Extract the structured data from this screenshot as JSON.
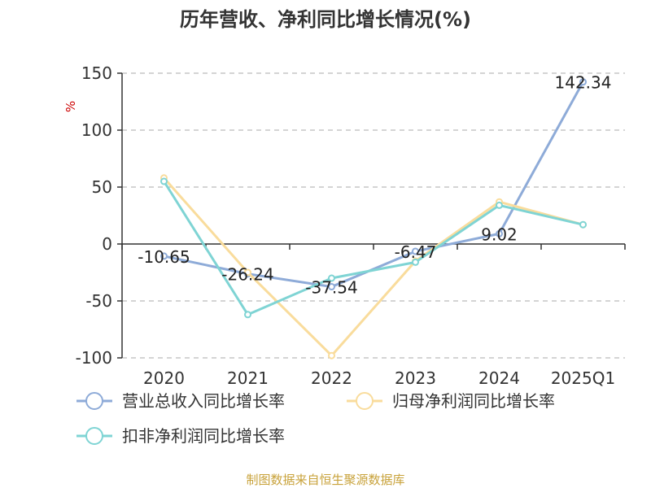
{
  "chart_data": {
    "type": "line",
    "title": "历年营收、净利同比增长情况(%)",
    "ylabel": "%",
    "categories": [
      "2020",
      "2021",
      "2022",
      "2023",
      "2024",
      "2025Q1"
    ],
    "ylim": [
      -100,
      150
    ],
    "yticks": [
      150,
      100,
      50,
      0,
      -50,
      -100
    ],
    "grid": true,
    "legend_position": "bottom",
    "series": [
      {
        "name": "营业总收入同比增长率",
        "color": "#8eabd8",
        "values": [
          -10.65,
          -26.24,
          -37.54,
          -6.47,
          9.02,
          142.34
        ],
        "labels": [
          "-10.65",
          "-26.24",
          "-37.54",
          "-6.47",
          "9.02",
          "142.34"
        ]
      },
      {
        "name": "归母净利润同比增长率",
        "color": "#f9dc9c",
        "values": [
          58,
          -25,
          -98,
          -15,
          37,
          17
        ]
      },
      {
        "name": "扣非净利润同比增长率",
        "color": "#7fd4d4",
        "values": [
          55,
          -62,
          -30,
          -16,
          34,
          17
        ]
      }
    ]
  },
  "source": "制图数据来自恒生聚源数据库"
}
